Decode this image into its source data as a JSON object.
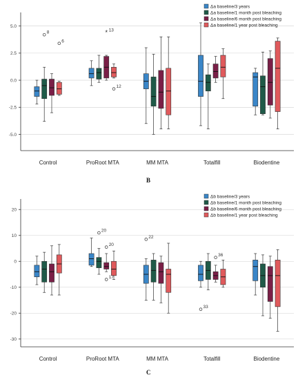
{
  "chart_data": [
    {
      "type": "box",
      "panel_label": "B",
      "ylim": [
        -6.5,
        6
      ],
      "yticks": [
        -5.0,
        -2.5,
        0.0,
        2.5,
        5.0
      ],
      "ytick_labels": [
        "-5.0",
        "-2.5",
        "0.0",
        "2.5",
        "5.0"
      ],
      "grid": true,
      "legend_placement": "top-right",
      "categories": [
        "Control",
        "ProRoot MTA",
        "MM MTA",
        "Totalfill",
        "Biodentine"
      ],
      "series": [
        {
          "name": "Δa baseline/3 years",
          "color": "#3a86c8",
          "boxes": [
            {
              "whislo": -2.2,
              "q1": -1.5,
              "med": -1.0,
              "q3": -0.6,
              "whishi": 0.0
            },
            {
              "whislo": -0.5,
              "q1": 0.2,
              "med": 0.6,
              "q3": 1.1,
              "whishi": 1.8
            },
            {
              "whislo": -4.0,
              "q1": -0.8,
              "med": -0.1,
              "q3": 0.6,
              "whishi": 3.0
            },
            {
              "whislo": -4.2,
              "q1": -1.5,
              "med": -0.1,
              "q3": 2.3,
              "whishi": 5.3
            },
            {
              "whislo": -3.2,
              "q1": -2.4,
              "med": 0.3,
              "q3": 0.7,
              "whishi": 1.1
            }
          ]
        },
        {
          "name": "Δa baseline/1 month post bleaching",
          "color": "#1f5a48",
          "boxes": [
            {
              "whislo": -3.8,
              "q1": -1.7,
              "med": -0.5,
              "q3": 0.1,
              "whishi": 1.2
            },
            {
              "whislo": -0.2,
              "q1": 0.1,
              "med": 0.7,
              "q3": 1.1,
              "whishi": 2.3
            },
            {
              "whislo": -5.0,
              "q1": -2.4,
              "med": -1.5,
              "q3": 0.3,
              "whishi": 2.4
            },
            {
              "whislo": -4.5,
              "q1": -1.0,
              "med": -0.2,
              "q3": 0.5,
              "whishi": 1.5
            },
            {
              "whislo": -3.2,
              "q1": -3.1,
              "med": -0.6,
              "q3": 0.4,
              "whishi": 2.6
            }
          ]
        },
        {
          "name": "Δa baseline/6 month post bleaching",
          "color": "#7a1f47",
          "boxes": [
            {
              "whislo": -3.0,
              "q1": -1.4,
              "med": -0.7,
              "q3": 0.1,
              "whishi": 0.6
            },
            {
              "whislo": 0.0,
              "q1": 0.2,
              "med": 1.2,
              "q3": 2.2,
              "whishi": 2.3
            },
            {
              "whislo": -4.5,
              "q1": -2.6,
              "med": -1.1,
              "q3": 0.9,
              "whishi": 4.0
            },
            {
              "whislo": -0.2,
              "q1": 0.2,
              "med": 0.8,
              "q3": 1.5,
              "whishi": 2.2
            },
            {
              "whislo": -3.5,
              "q1": -2.3,
              "med": -0.2,
              "q3": 2.0,
              "whishi": 2.7
            }
          ]
        },
        {
          "name": "Δa baseline/1 year post bleaching",
          "color": "#e05a5c",
          "boxes": [
            {
              "whislo": -1.4,
              "q1": -1.3,
              "med": -0.8,
              "q3": -0.2,
              "whishi": -0.1
            },
            {
              "whislo": 0.2,
              "q1": 0.3,
              "med": 0.7,
              "q3": 1.2,
              "whishi": 1.5
            },
            {
              "whislo": -4.5,
              "q1": -3.2,
              "med": -1.0,
              "q3": 1.1,
              "whishi": 4.0
            },
            {
              "whislo": -1.7,
              "q1": 0.3,
              "med": 1.2,
              "q3": 2.3,
              "whishi": 2.9
            },
            {
              "whislo": -4.5,
              "q1": -2.9,
              "med": 1.1,
              "q3": 3.6,
              "whishi": 3.9
            }
          ]
        }
      ],
      "outliers": [
        {
          "cat": 0,
          "series": 1,
          "y": 4.2,
          "label": "8",
          "marker": "o"
        },
        {
          "cat": 0,
          "series": 3,
          "y": 3.4,
          "label": "6",
          "marker": "o"
        },
        {
          "cat": 1,
          "series": 2,
          "y": 4.4,
          "label": "13",
          "marker": "*"
        },
        {
          "cat": 1,
          "series": 3,
          "y": -0.8,
          "label": "12",
          "marker": "o"
        }
      ]
    },
    {
      "type": "box",
      "panel_label": "C",
      "ylim": [
        -33,
        23
      ],
      "yticks": [
        -30,
        -20,
        -10,
        0,
        10,
        20
      ],
      "ytick_labels": [
        "-30",
        "-20",
        "-10",
        "0",
        "10",
        "20"
      ],
      "grid": true,
      "legend_placement": "top-right",
      "categories": [
        "Control",
        "ProRoot MTA",
        "MM MTA",
        "Totalfill",
        "Biodentine"
      ],
      "series": [
        {
          "name": "Δb baseline/3 years",
          "color": "#3a86c8",
          "boxes": [
            {
              "whislo": -9,
              "q1": -6,
              "med": -4,
              "q3": -1.5,
              "whishi": 2
            },
            {
              "whislo": -2,
              "q1": -1.5,
              "med": 1,
              "q3": 3,
              "whishi": 9
            },
            {
              "whislo": -15,
              "q1": -8.5,
              "med": -5,
              "q3": -1.5,
              "whishi": 1
            },
            {
              "whislo": -10,
              "q1": -7.5,
              "med": -5,
              "q3": -1.5,
              "whishi": 0
            },
            {
              "whislo": -13,
              "q1": -7.5,
              "med": -2,
              "q3": 0.5,
              "whishi": 3
            }
          ]
        },
        {
          "name": "Δb baseline/1 month post bleaching",
          "color": "#1f5a48",
          "boxes": [
            {
              "whislo": -12,
              "q1": -8,
              "med": -3,
              "q3": 0,
              "whishi": 3.5
            },
            {
              "whislo": -5,
              "q1": -2.5,
              "med": 0,
              "q3": 1.5,
              "whishi": 5
            },
            {
              "whislo": -15,
              "q1": -8,
              "med": -3.5,
              "q3": 0.5,
              "whishi": 3
            },
            {
              "whislo": -11,
              "q1": -7,
              "med": -3.5,
              "q3": 0,
              "whishi": 3
            },
            {
              "whislo": -21,
              "q1": -10,
              "med": -5.5,
              "q3": -1,
              "whishi": 2.5
            }
          ]
        },
        {
          "name": "Δb baseline/6 month post bleaching",
          "color": "#7a1f47",
          "boxes": [
            {
              "whislo": -13,
              "q1": -8,
              "med": -4,
              "q3": -1,
              "whishi": 6
            },
            {
              "whislo": -4,
              "q1": -3,
              "med": -2,
              "q3": -0.5,
              "whishi": 3
            },
            {
              "whislo": -16,
              "q1": -8.5,
              "med": -4,
              "q3": -0.5,
              "whishi": 2
            },
            {
              "whislo": -8,
              "q1": -7,
              "med": -5.5,
              "q3": -4,
              "whishi": -1.5
            },
            {
              "whislo": -22,
              "q1": -15.5,
              "med": -5.5,
              "q3": -2,
              "whishi": 2
            }
          ]
        },
        {
          "name": "Δb baseline/1 year post bleaching",
          "color": "#e05a5c",
          "boxes": [
            {
              "whislo": -13,
              "q1": -4.5,
              "med": -1,
              "q3": 2.5,
              "whishi": 6.5
            },
            {
              "whislo": -7,
              "q1": -5.5,
              "med": -3,
              "q3": 0,
              "whishi": 4
            },
            {
              "whislo": -20,
              "q1": -12,
              "med": -5,
              "q3": -3,
              "whishi": 7
            },
            {
              "whislo": -10,
              "q1": -9,
              "med": -6,
              "q3": -3,
              "whishi": 0.5
            },
            {
              "whislo": -27,
              "q1": -17.5,
              "med": -5.5,
              "q3": 0.5,
              "whishi": 4.5
            }
          ]
        }
      ],
      "outliers": [
        {
          "cat": 1,
          "series": 1,
          "y": 11,
          "label": "20",
          "marker": "o"
        },
        {
          "cat": 1,
          "series": 2,
          "y": 5.5,
          "label": "20",
          "marker": "o"
        },
        {
          "cat": 1,
          "series": 2,
          "y": -7,
          "label": "17",
          "marker": "o"
        },
        {
          "cat": 2,
          "series": 0,
          "y": 8.5,
          "label": "22",
          "marker": "o"
        },
        {
          "cat": 3,
          "series": 2,
          "y": 1.5,
          "label": "36",
          "marker": "o"
        },
        {
          "cat": 3,
          "series": 0,
          "y": -18.5,
          "label": "33",
          "marker": "o"
        }
      ]
    }
  ]
}
